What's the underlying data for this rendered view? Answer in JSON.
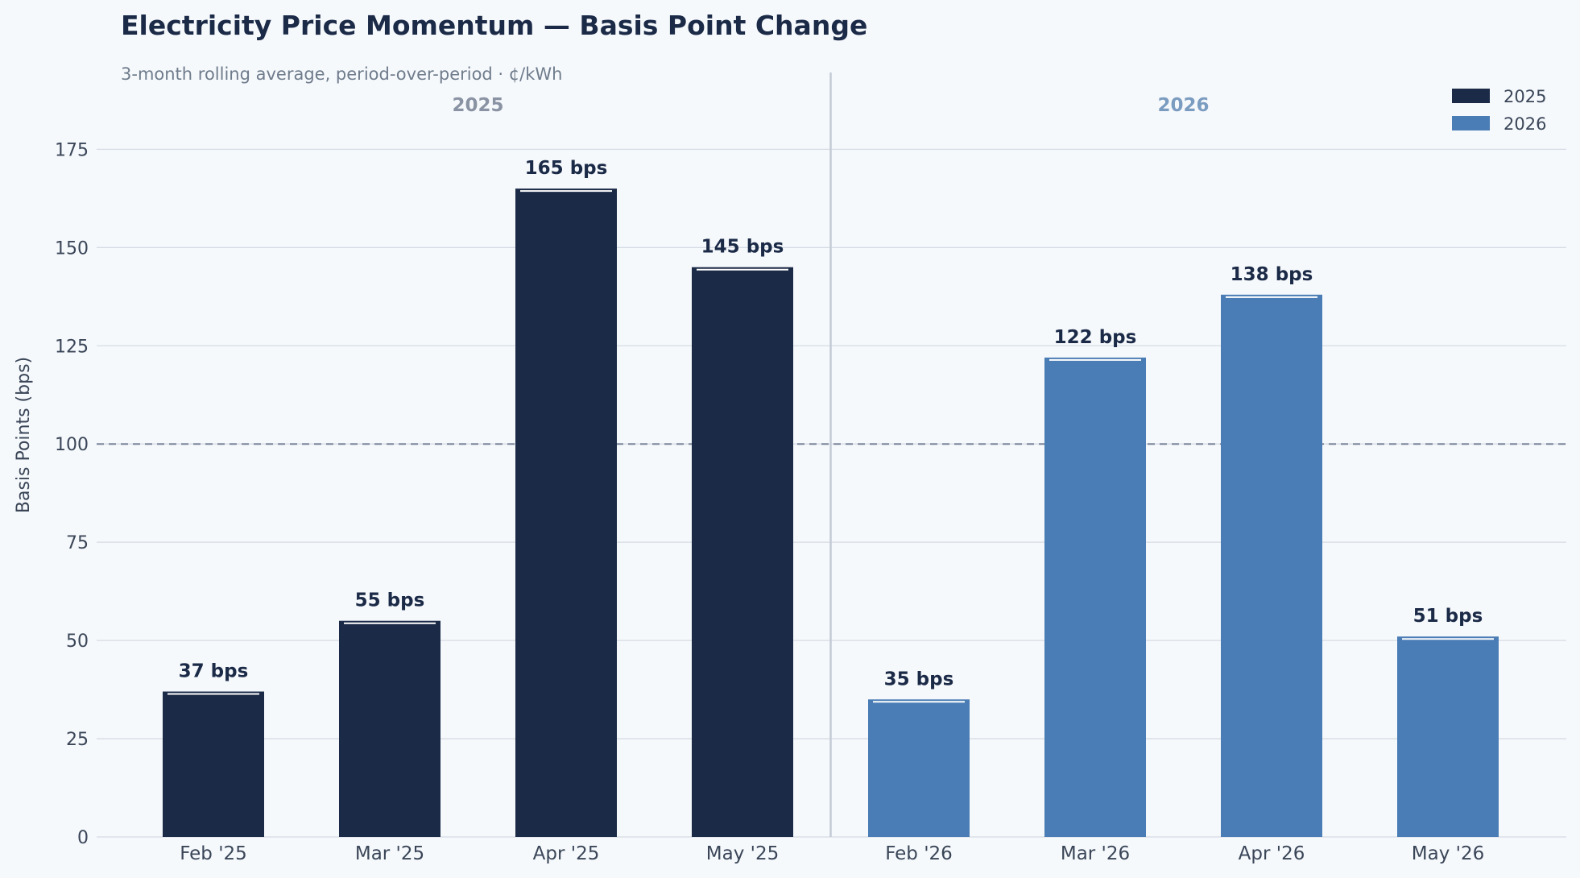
{
  "chart_data": {
    "type": "bar",
    "title": "Electricity Price Momentum — Basis Point Change",
    "subtitle": "3-month rolling average, period-over-period  ·  ¢/kWh",
    "xlabel": "",
    "ylabel": "Basis Points (bps)",
    "ylim": [
      0,
      195
    ],
    "yticks": [
      0,
      25,
      50,
      75,
      100,
      125,
      150,
      175
    ],
    "reference_line": 100,
    "grid": "horizontal",
    "legend_position": "top-right",
    "value_suffix": " bps",
    "categories": [
      "Feb '25",
      "Mar '25",
      "Apr '25",
      "May '25",
      "Feb '26",
      "Mar '26",
      "Apr '26",
      "May '26"
    ],
    "groups": [
      {
        "label": "2025",
        "color": "#8a93a3"
      },
      {
        "label": "2026",
        "color": "#7a9cc0"
      }
    ],
    "series": [
      {
        "name": "2025",
        "color": "#1b2a47",
        "values": [
          37,
          55,
          165,
          145,
          null,
          null,
          null,
          null
        ]
      },
      {
        "name": "2026",
        "color": "#4a7db5",
        "values": [
          null,
          null,
          null,
          null,
          35,
          122,
          138,
          51
        ]
      }
    ]
  }
}
